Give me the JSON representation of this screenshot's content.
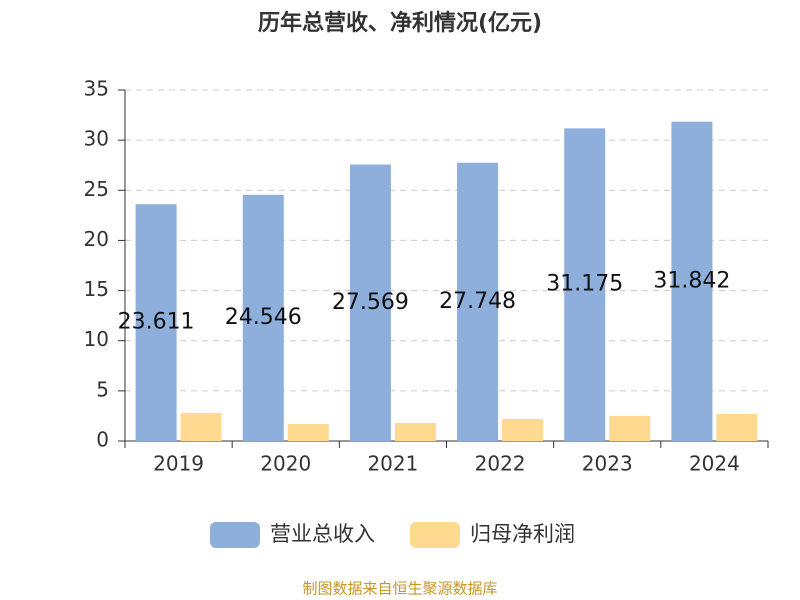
{
  "chart_data": {
    "type": "bar",
    "title": "历年总营收、净利情况(亿元)",
    "source": "制图数据来自恒生聚源数据库",
    "categories": [
      "2019",
      "2020",
      "2021",
      "2022",
      "2023",
      "2024"
    ],
    "series": [
      {
        "name": "营业总收入",
        "color": "#8eaedb",
        "values": [
          23.611,
          24.546,
          27.569,
          27.748,
          31.175,
          31.842
        ],
        "show_labels": true
      },
      {
        "name": "归母净利润",
        "color": "#ffd990",
        "values": [
          2.8,
          1.7,
          1.8,
          2.2,
          2.5,
          2.7
        ],
        "show_labels": false
      }
    ],
    "ylim": [
      0,
      35
    ],
    "yticks": [
      0,
      5,
      10,
      15,
      20,
      25,
      30,
      35
    ],
    "grid": true,
    "legend": "bottom"
  }
}
